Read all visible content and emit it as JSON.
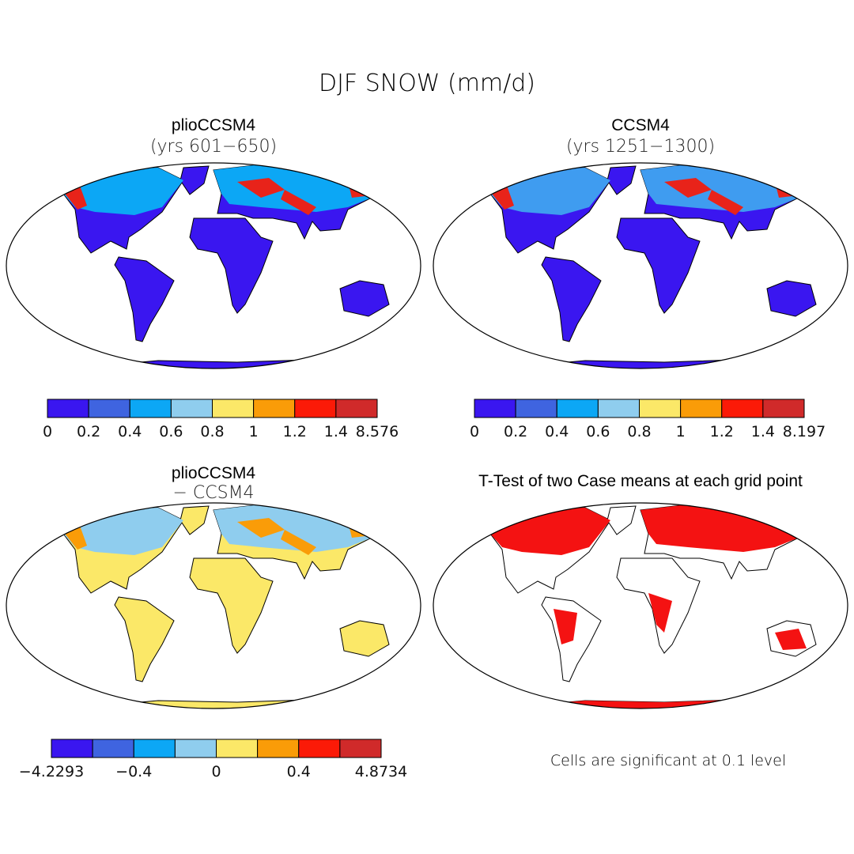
{
  "title": "DJF SNOW (mm/d)",
  "panels": [
    {
      "title": "plioCCSM4",
      "subtitle": "(yrs 601−650)",
      "colorbar": {
        "colors": [
          "#3a16f0",
          "#3f64e0",
          "#0ca7f5",
          "#8fcdee",
          "#fbe868",
          "#fa9c08",
          "#fb1a07",
          "#d02a2a"
        ],
        "labels": [
          "0",
          "0.2",
          "0.4",
          "0.6",
          "0.8",
          "1",
          "1.2",
          "1.4",
          "8.576"
        ]
      }
    },
    {
      "title": "CCSM4",
      "subtitle": "(yrs 1251−1300)",
      "colorbar": {
        "colors": [
          "#3a16f0",
          "#3f64e0",
          "#0ca7f5",
          "#8fcdee",
          "#fbe868",
          "#fa9c08",
          "#fb1a07",
          "#d02a2a"
        ],
        "labels": [
          "0",
          "0.2",
          "0.4",
          "0.6",
          "0.8",
          "1",
          "1.2",
          "1.4",
          "8.197"
        ]
      }
    },
    {
      "title": "plioCCSM4",
      "subtitle": "− CCSM4",
      "colorbar": {
        "colors": [
          "#3a16f0",
          "#3f64e0",
          "#0ca7f5",
          "#8fcdee",
          "#fbe868",
          "#fa9c08",
          "#fb1a07",
          "#d02a2a"
        ],
        "labels": [
          "−4.2293",
          "−0.4",
          "0",
          "0.4",
          "4.8734"
        ]
      }
    },
    {
      "title": "T-Test of two Case means at each grid point",
      "note": "Cells are significant at 0.1 level"
    }
  ]
}
